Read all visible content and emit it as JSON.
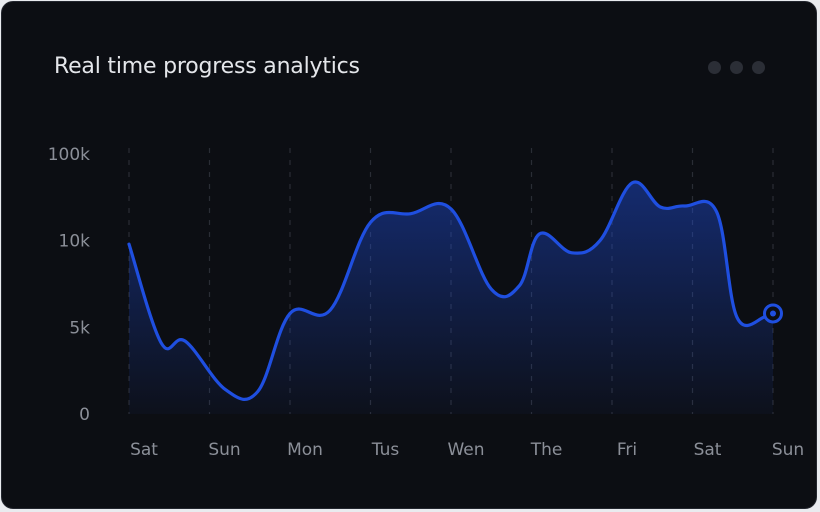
{
  "title": "Real time progress analytics",
  "menu": {
    "icon": "more-horizontal-icon"
  },
  "colors": {
    "line": "#1f4fe0",
    "background": "#0c0e13",
    "text": "#8b8f98"
  },
  "chart_data": {
    "type": "area",
    "title": "Real time progress analytics",
    "categories": [
      "Sat",
      "Sun",
      "Mon",
      "Tus",
      "Wen",
      "The",
      "Fri",
      "Sat",
      "Sun"
    ],
    "y_tick_labels": [
      "100k",
      "10k",
      "5k",
      "0"
    ],
    "y_ticks": [
      100000,
      10000,
      5000,
      0
    ],
    "y_scale": "nonlinear (equal spacing between 0, 5k, 10k, 100k)",
    "ylim": [
      0,
      100000
    ],
    "grid": "vertical dashed lines at each category",
    "x": [
      0,
      0.4,
      0.7,
      1.2,
      1.6,
      2.0,
      2.5,
      3.0,
      3.5,
      4.0,
      4.5,
      4.85,
      5.1,
      5.5,
      5.85,
      6.25,
      6.6,
      6.9,
      7.3,
      7.55,
      7.9,
      8.0
    ],
    "values": [
      9800,
      4100,
      4200,
      1400,
      1300,
      5800,
      6000,
      29000,
      38000,
      43000,
      7200,
      7400,
      17000,
      9300,
      10000,
      70000,
      45000,
      46000,
      40000,
      5600,
      5600,
      5800
    ],
    "highlight": {
      "x": 8.0,
      "value": 5800
    }
  }
}
